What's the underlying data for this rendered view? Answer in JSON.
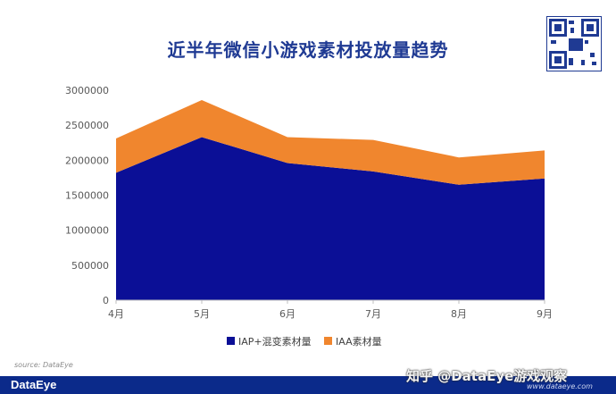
{
  "title": "近半年微信小游戏素材投放量趋势",
  "source": "source: DataEye",
  "brand": "DataEye",
  "watermark": "知乎 @DataEye游戏观察",
  "website": "www.dataeye.com",
  "colors": {
    "title": "#1f3a93",
    "iap": "#0b0f96",
    "iaa": "#f0862e",
    "footer": "#0b2a8a"
  },
  "chart_data": {
    "type": "area",
    "stacked": true,
    "categories": [
      "4月",
      "5月",
      "6月",
      "7月",
      "8月",
      "9月"
    ],
    "series": [
      {
        "name": "IAP+混变素材量",
        "color": "#0b0f96",
        "values": [
          1820000,
          2330000,
          1960000,
          1840000,
          1650000,
          1740000
        ]
      },
      {
        "name": "IAA素材量",
        "color": "#f0862e",
        "values": [
          490000,
          530000,
          370000,
          450000,
          390000,
          400000
        ]
      }
    ],
    "ylim": [
      0,
      3000000
    ],
    "yticks": [
      0,
      500000,
      1000000,
      1500000,
      2000000,
      2500000,
      3000000
    ],
    "grid": false,
    "legend": "bottom"
  }
}
